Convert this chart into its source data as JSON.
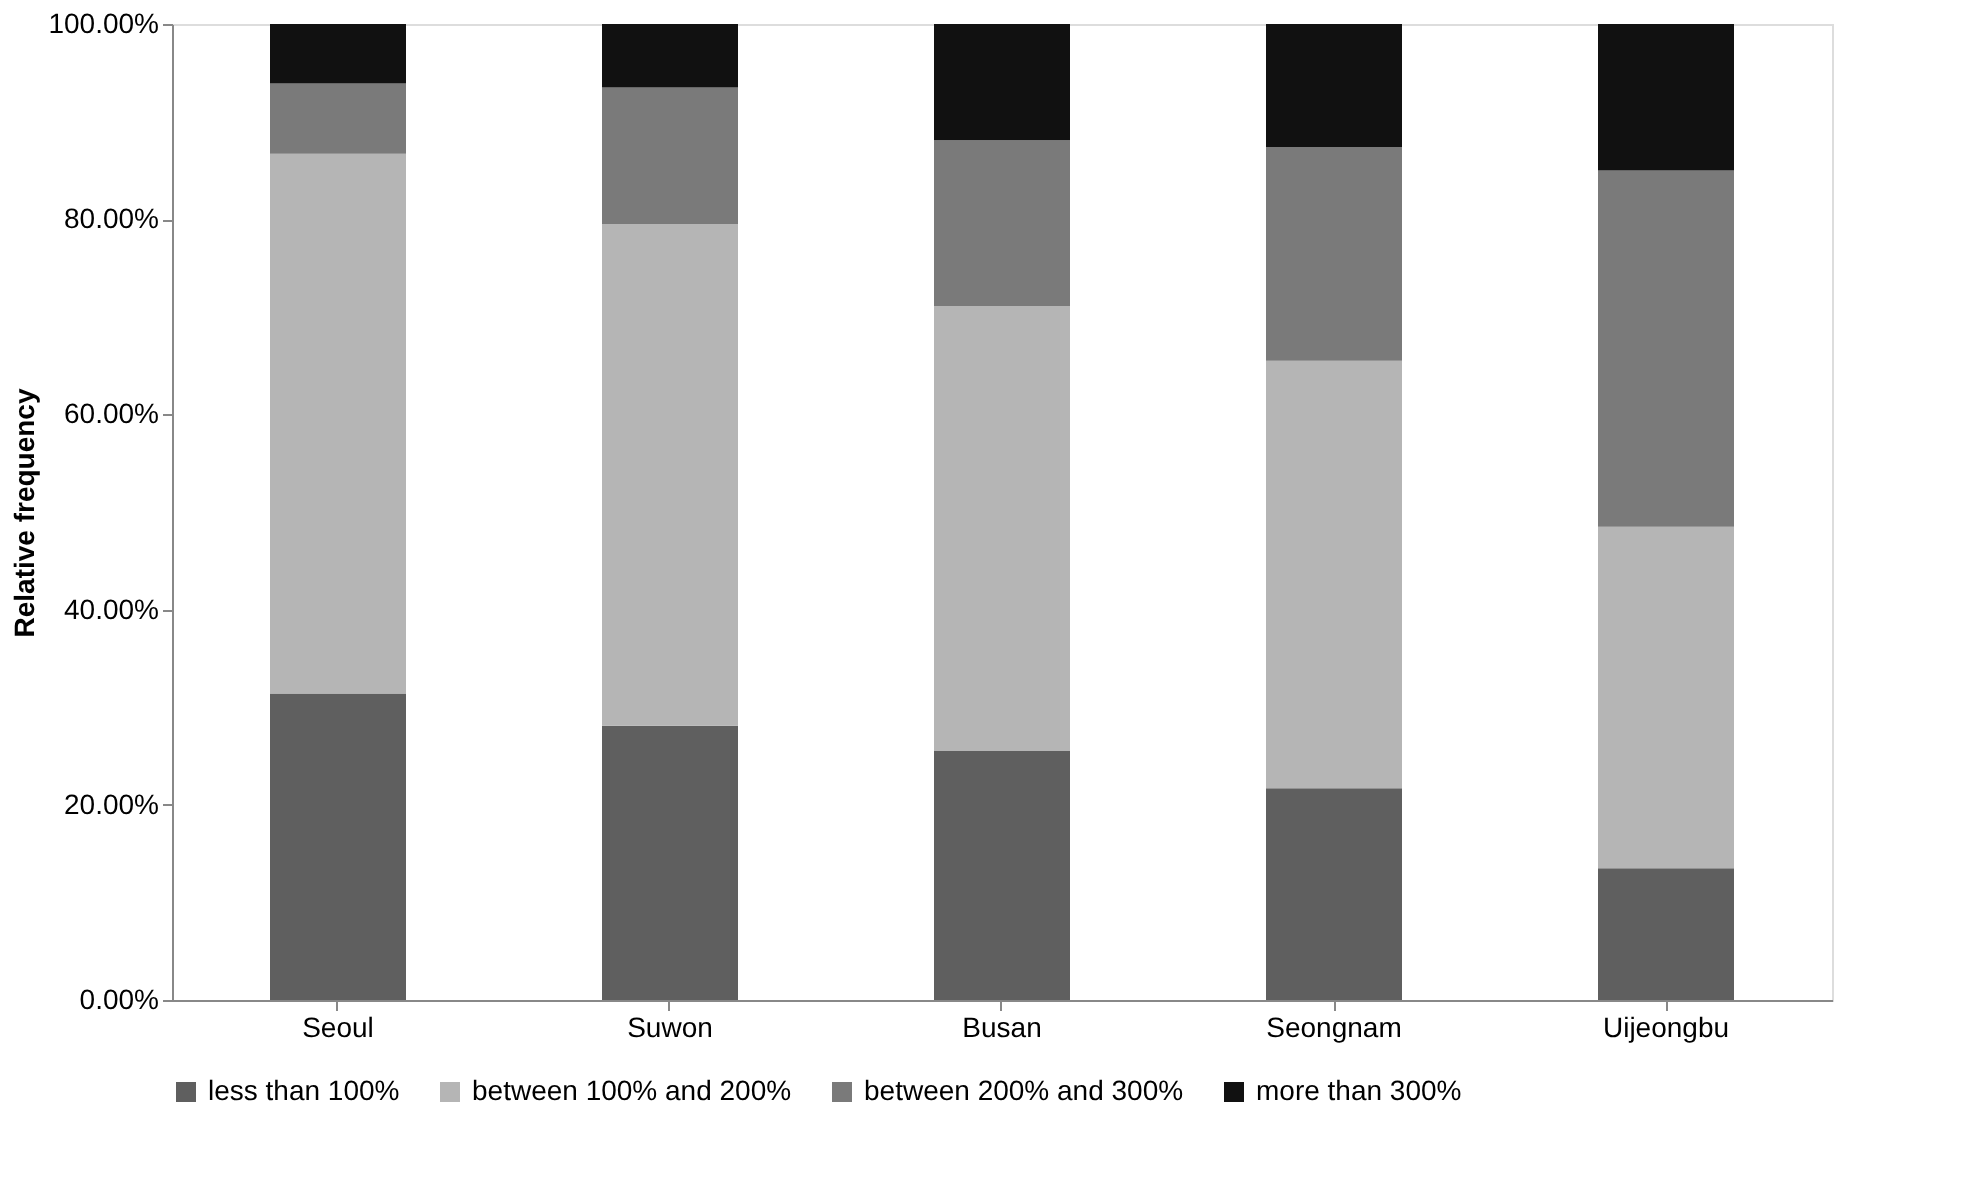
{
  "chart_data": {
    "type": "bar",
    "stacked": true,
    "ylabel": "Relative frequency",
    "categories": [
      "Seoul",
      "Suwon",
      "Busan",
      "Seongnam",
      "Uijeongbu"
    ],
    "series": [
      {
        "name": "less than 100%",
        "color": "#5f5f5f",
        "values": [
          31.4,
          28.1,
          25.5,
          21.7,
          13.5
        ]
      },
      {
        "name": "between 100% and 200%",
        "color": "#b5b5b5",
        "values": [
          55.3,
          51.4,
          45.6,
          43.8,
          35.0
        ]
      },
      {
        "name": "between 200% and 300%",
        "color": "#7a7a7a",
        "values": [
          7.2,
          14.0,
          17.0,
          21.9,
          36.5
        ]
      },
      {
        "name": "more than 300%",
        "color": "#111111",
        "values": [
          6.1,
          6.5,
          11.9,
          12.6,
          15.0
        ]
      }
    ],
    "ylim": [
      0,
      100
    ],
    "yticks": [
      {
        "value": 0,
        "label": "0.00%"
      },
      {
        "value": 20,
        "label": "20.00%"
      },
      {
        "value": 40,
        "label": "40.00%"
      },
      {
        "value": 60,
        "label": "60.00%"
      },
      {
        "value": 80,
        "label": "80.00%"
      },
      {
        "value": 100,
        "label": "100.00%"
      }
    ],
    "grid": false,
    "legend": "bottom"
  }
}
